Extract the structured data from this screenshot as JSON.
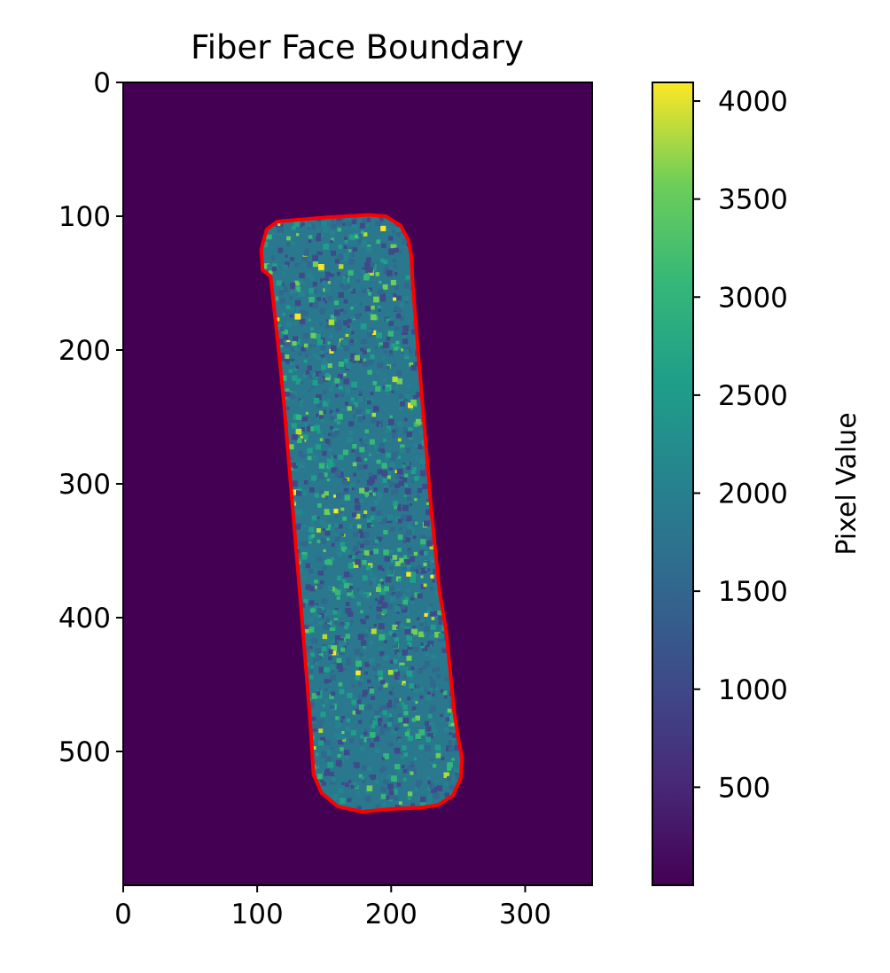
{
  "chart_data": {
    "type": "heatmap",
    "title": "Fiber Face Boundary",
    "xlabel": "",
    "ylabel": "",
    "xlim": [
      0,
      350
    ],
    "ylim": [
      600,
      0
    ],
    "x_ticks": [
      "0",
      "100",
      "200",
      "300"
    ],
    "y_ticks": [
      "0",
      "100",
      "200",
      "300",
      "400",
      "500"
    ],
    "colormap": "viridis",
    "background_value": 0,
    "colorbar": {
      "label": "Pixel Value",
      "range": [
        0,
        4095
      ],
      "ticks": [
        "500",
        "1000",
        "1500",
        "2000",
        "2500",
        "3000",
        "3500",
        "4000"
      ]
    },
    "boundary": {
      "color": "#ff0000",
      "points": [
        [
          115,
          104
        ],
        [
          150,
          101
        ],
        [
          183,
          99
        ],
        [
          196,
          100
        ],
        [
          207,
          107
        ],
        [
          213,
          118
        ],
        [
          215,
          130
        ],
        [
          216,
          150
        ],
        [
          220,
          200
        ],
        [
          225,
          260
        ],
        [
          230,
          320
        ],
        [
          236,
          380
        ],
        [
          241,
          410
        ],
        [
          244,
          440
        ],
        [
          247,
          470
        ],
        [
          250,
          490
        ],
        [
          253,
          505
        ],
        [
          252,
          520
        ],
        [
          246,
          533
        ],
        [
          235,
          540
        ],
        [
          222,
          542
        ],
        [
          200,
          543
        ],
        [
          178,
          545
        ],
        [
          160,
          541
        ],
        [
          148,
          531
        ],
        [
          142,
          517
        ],
        [
          141,
          500
        ],
        [
          139,
          470
        ],
        [
          135,
          420
        ],
        [
          130,
          360
        ],
        [
          125,
          300
        ],
        [
          120,
          240
        ],
        [
          115,
          190
        ],
        [
          110,
          145
        ],
        [
          104,
          140
        ],
        [
          103,
          125
        ],
        [
          107,
          110
        ]
      ]
    },
    "speckle_seed": 7
  }
}
